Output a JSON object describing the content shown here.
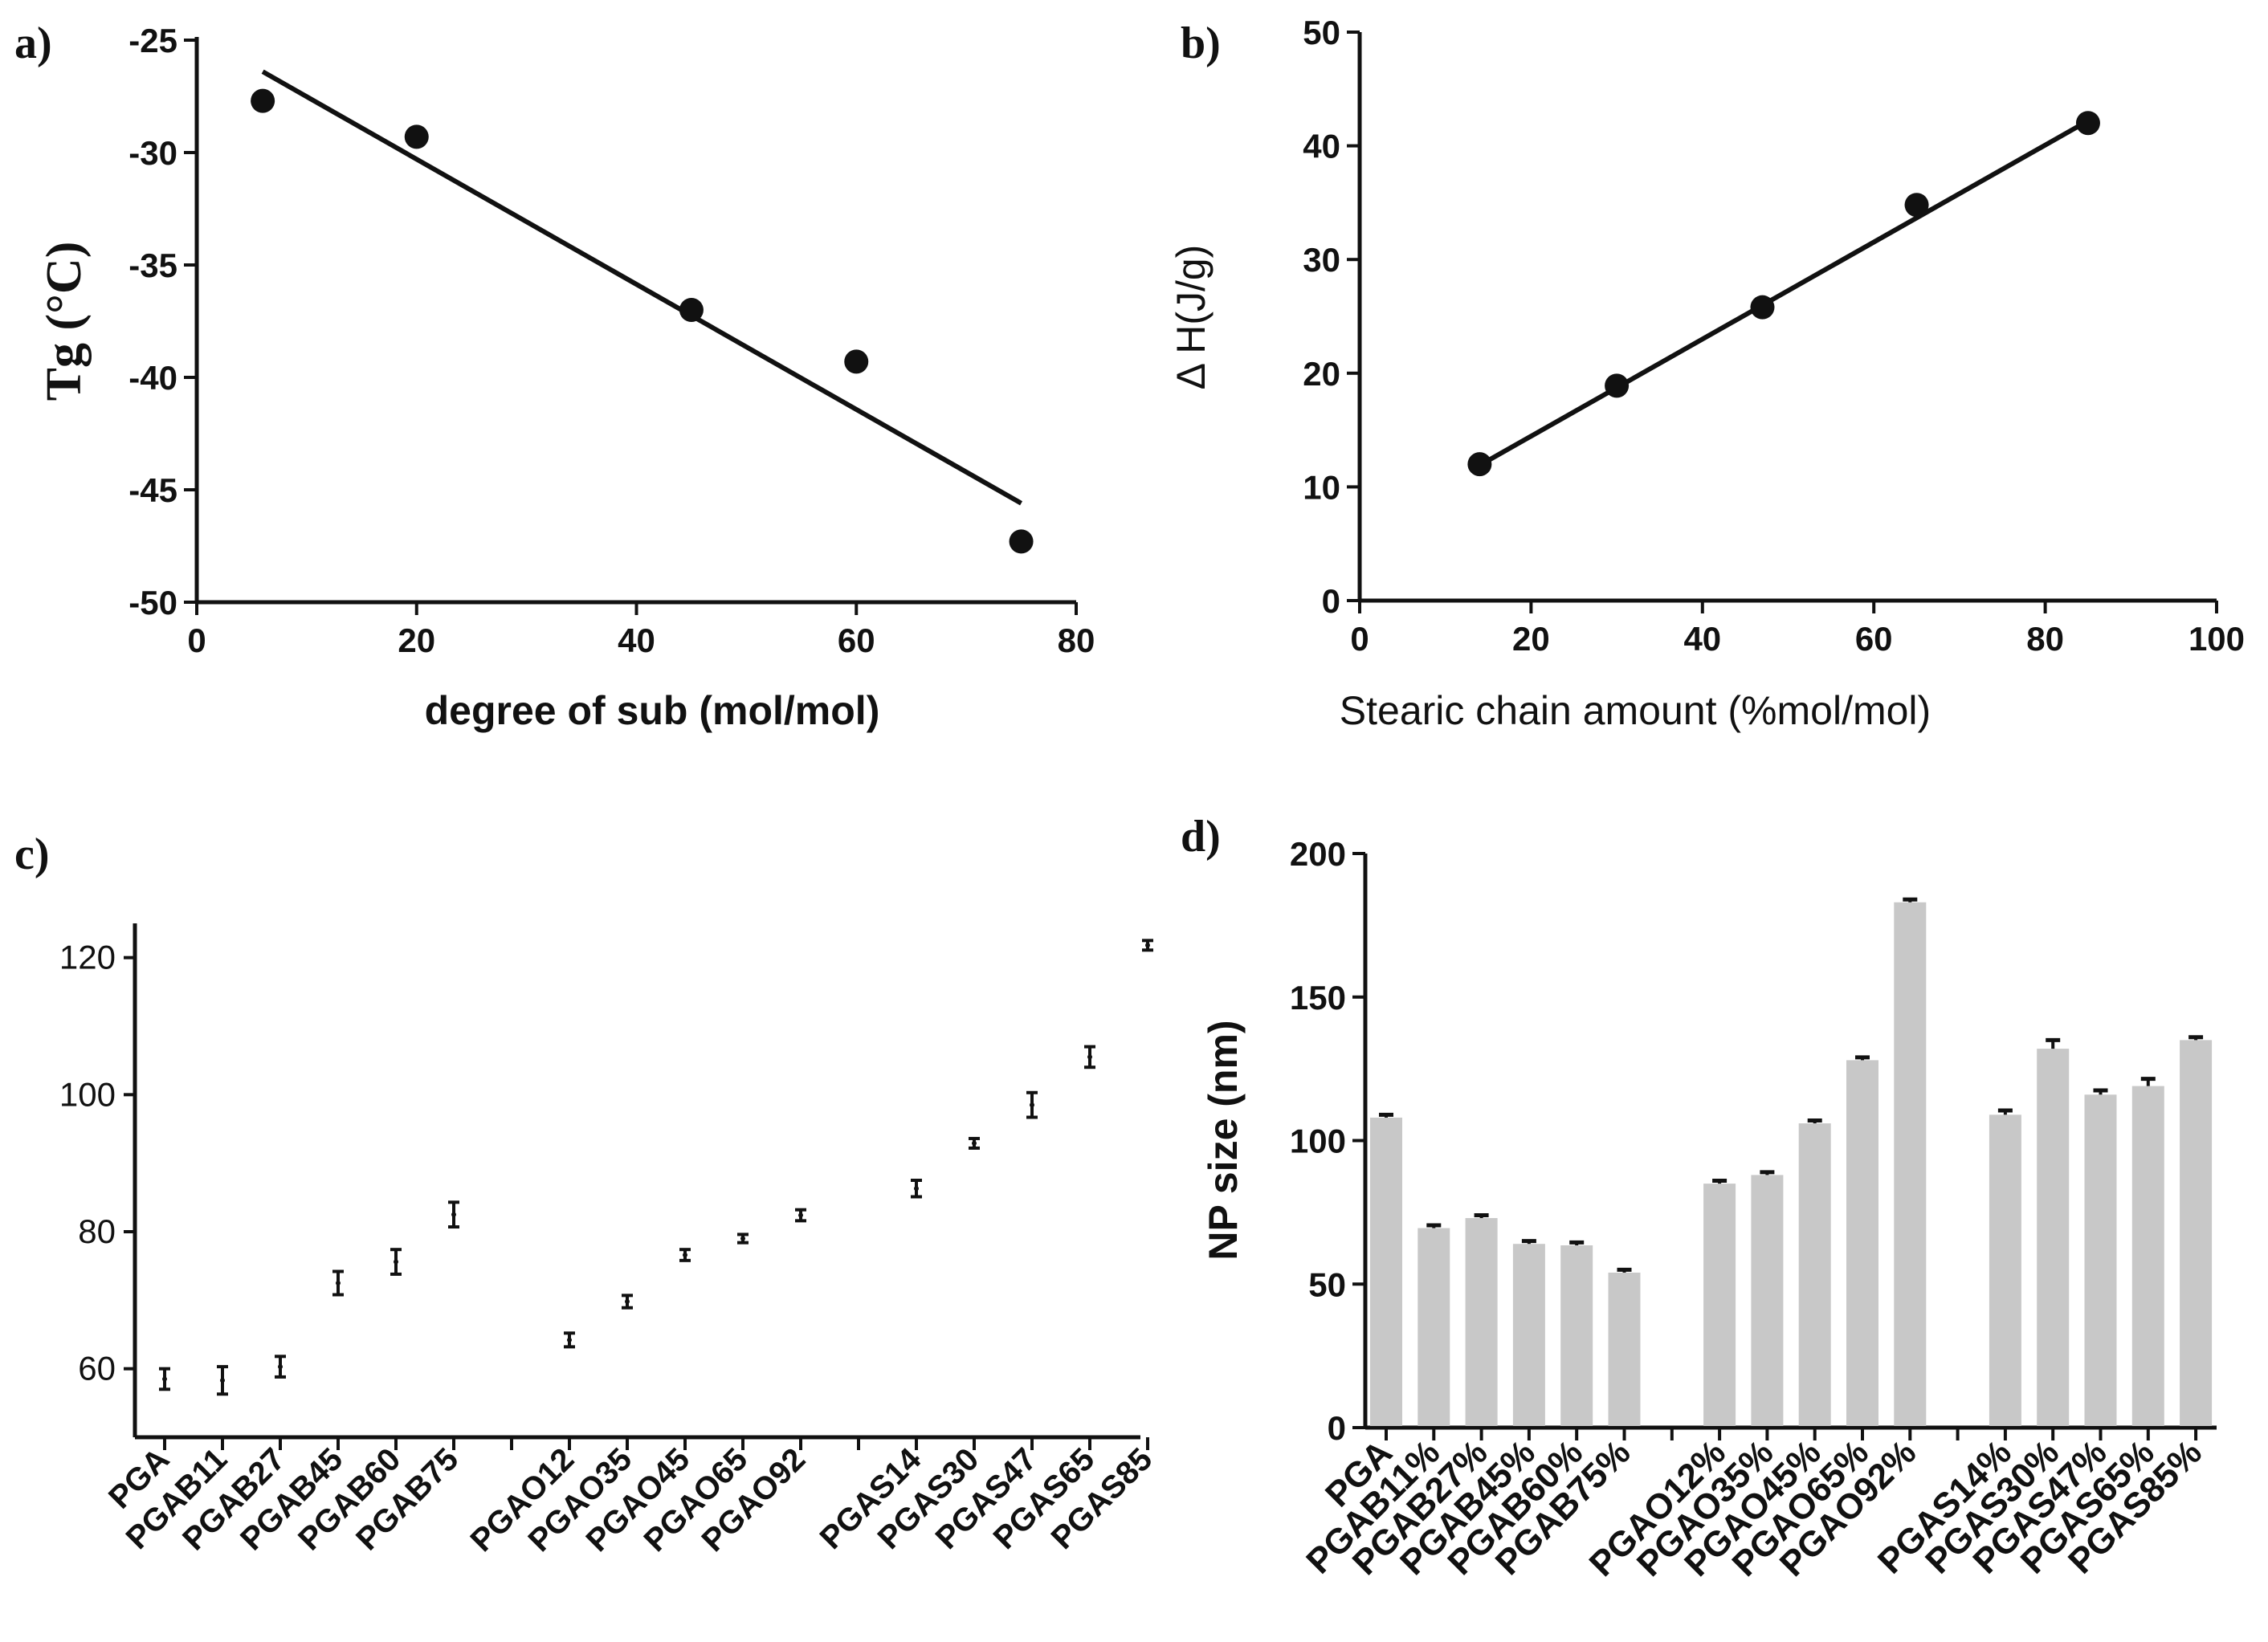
{
  "chart_data": [
    {
      "panel": "a)",
      "type": "scatter",
      "xlabel": "degree of sub (mol/mol)",
      "ylabel": "Tg (°C)",
      "xlim": [
        0,
        80
      ],
      "ylim": [
        -50,
        -25
      ],
      "xticks": [
        0,
        20,
        40,
        60,
        80
      ],
      "yticks": [
        -50,
        -45,
        -40,
        -35,
        -30,
        -25
      ],
      "points": [
        {
          "x": 6,
          "y": -27.7
        },
        {
          "x": 20,
          "y": -29.3
        },
        {
          "x": 45,
          "y": -37.0
        },
        {
          "x": 60,
          "y": -39.3
        },
        {
          "x": 75,
          "y": -47.3
        }
      ],
      "fit_line": {
        "x": [
          6,
          75
        ],
        "y": [
          -26.4,
          -45.6
        ]
      }
    },
    {
      "panel": "b)",
      "type": "scatter",
      "xlabel": "Stearic chain amount (%mol/mol)",
      "ylabel": "Δ H(J/g)",
      "xlim": [
        0,
        100
      ],
      "ylim": [
        0,
        50
      ],
      "xticks": [
        0,
        20,
        40,
        60,
        80,
        100
      ],
      "yticks": [
        0,
        10,
        20,
        30,
        40,
        50
      ],
      "points": [
        {
          "x": 14,
          "y": 12.0
        },
        {
          "x": 30,
          "y": 18.9
        },
        {
          "x": 47,
          "y": 25.8
        },
        {
          "x": 65,
          "y": 34.8
        },
        {
          "x": 85,
          "y": 42.0
        }
      ],
      "fit_line": {
        "x": [
          14,
          85
        ],
        "y": [
          11.9,
          42.2
        ]
      }
    },
    {
      "panel": "c)",
      "type": "scatter",
      "xlabel": "",
      "ylabel": "",
      "ylim": [
        50,
        125
      ],
      "yticks": [
        60,
        80,
        100,
        120
      ],
      "categories": [
        "PGA",
        "PGAB11",
        "PGAB27",
        "PGAB45",
        "PGAB60",
        "PGAB75",
        "",
        "PGAO12",
        "PGAO35",
        "PGAO45",
        "PGAO65",
        "PGAO92",
        "",
        "PGAS14",
        "PGAS30",
        "PGAS47",
        "PGAS65",
        "PGAS85"
      ],
      "values": [
        58.5,
        58.3,
        60.3,
        72.5,
        75.6,
        82.5,
        null,
        64.2,
        69.8,
        76.6,
        79.0,
        82.4,
        null,
        86.3,
        92.9,
        98.5,
        105.5,
        121.8
      ],
      "errors": [
        1.5,
        2.0,
        1.5,
        1.7,
        1.8,
        1.8,
        null,
        1.0,
        0.9,
        0.8,
        0.6,
        0.8,
        null,
        1.2,
        0.7,
        1.8,
        1.5,
        0.7
      ]
    },
    {
      "panel": "d)",
      "type": "bar",
      "xlabel": "",
      "ylabel": "NP size (nm)",
      "ylim": [
        0,
        200
      ],
      "yticks": [
        0,
        50,
        100,
        150,
        200
      ],
      "categories": [
        "PGA",
        "PGAB11%",
        "PGAB27%",
        "PGAB45%",
        "PGAB60%",
        "PGAB75%",
        "",
        "PGAO12%",
        "PGAO35%",
        "PGAO45%",
        "PGAO65%",
        "PGAO92%",
        "",
        "PGAS14%",
        "PGAS30%",
        "PGAS47%",
        "PGAS65%",
        "PGAS85%"
      ],
      "values": [
        108,
        69.5,
        73,
        64,
        63.5,
        54,
        null,
        85,
        88,
        106,
        128,
        183,
        null,
        109,
        132,
        116,
        119,
        135
      ],
      "errors": [
        1,
        1,
        1,
        1,
        1,
        1,
        null,
        1,
        1,
        1,
        1,
        1,
        null,
        1.5,
        3,
        1.5,
        2.5,
        1
      ],
      "bar_color": "#c8c8c8"
    }
  ]
}
